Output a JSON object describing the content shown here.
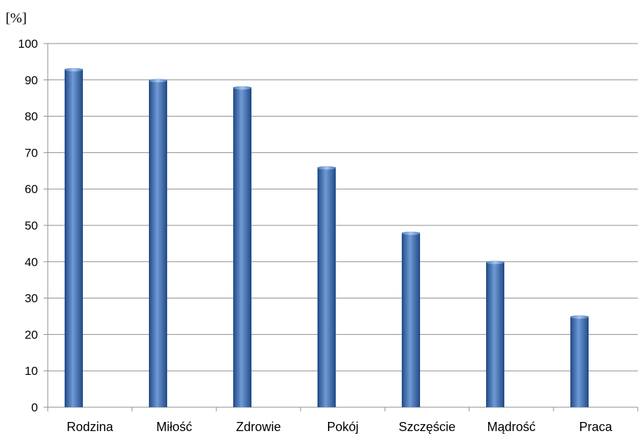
{
  "chart_data": {
    "type": "bar",
    "title": "",
    "xlabel": "",
    "ylabel": "[%]",
    "categories": [
      "Rodzina",
      "Miłość",
      "Zdrowie",
      "Pokój",
      "Szczęście",
      "Mądrość",
      "Praca"
    ],
    "values": [
      93,
      90,
      88,
      66,
      48,
      40,
      25
    ],
    "ylim": [
      0,
      100
    ],
    "yticks": [
      0,
      10,
      20,
      30,
      40,
      50,
      60,
      70,
      80,
      90,
      100
    ],
    "grid": true,
    "legend": "none",
    "colors": {
      "bar": "#3a6db0",
      "bar_dark": "#1f4a86",
      "bar_light": "#6f9ad6",
      "grid": "#8c8c8c",
      "axis": "#8c8c8c"
    }
  }
}
